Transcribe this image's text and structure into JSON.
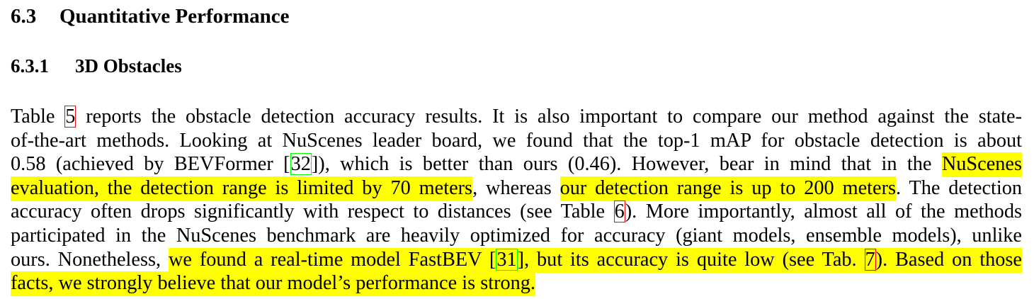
{
  "section": {
    "number": "6.3",
    "title": "Quantitative Performance"
  },
  "subsection": {
    "number": "6.3.1",
    "title": "3D Obstacles"
  },
  "paragraph": {
    "l1": {
      "a": "Table ",
      "ref": "5",
      "b": " reports the obstacle detection accuracy results. It is also important to compare our method against the state-"
    },
    "l2": {
      "a": "of-the-art methods. Looking at NuScenes leader board, we found that the top-1 mAP for obstacle detection is about"
    },
    "l3": {
      "a": "0.58 (achieved by BEVFormer [",
      "ref": "32",
      "b": "]), which is better than ours (0.46). However, bear in mind that in the ",
      "hl": "NuScenes"
    },
    "l4": {
      "hl1": "evaluation, the detection range is limited by 70 meters",
      "a": ", whereas ",
      "hl2": "our detection range is up to 200 meters",
      "b": ". The detection"
    },
    "l5": {
      "a": "accuracy often drops significantly with respect to distances (see Table ",
      "ref": "6",
      "b": "). More importantly, almost all of the methods"
    },
    "l6": {
      "a": "participated in the NuScenes benchmark are heavily optimized for accuracy (giant models, ensemble models), unlike"
    },
    "l7": {
      "a": "ours. Nonetheless, ",
      "hl1": "we found a real-time model FastBEV [",
      "ref1": "31",
      "hl2": "], but its accuracy is quite low (see Tab. ",
      "ref2": "7",
      "hl3": "). Based on those"
    },
    "l8": {
      "hl": "facts, we strongly believe that our model’s performance is strong."
    }
  },
  "colors": {
    "highlight": "#ffff00",
    "table_ref_box": "#ff0000",
    "citation_box": "#00ff00",
    "text": "#000000"
  }
}
